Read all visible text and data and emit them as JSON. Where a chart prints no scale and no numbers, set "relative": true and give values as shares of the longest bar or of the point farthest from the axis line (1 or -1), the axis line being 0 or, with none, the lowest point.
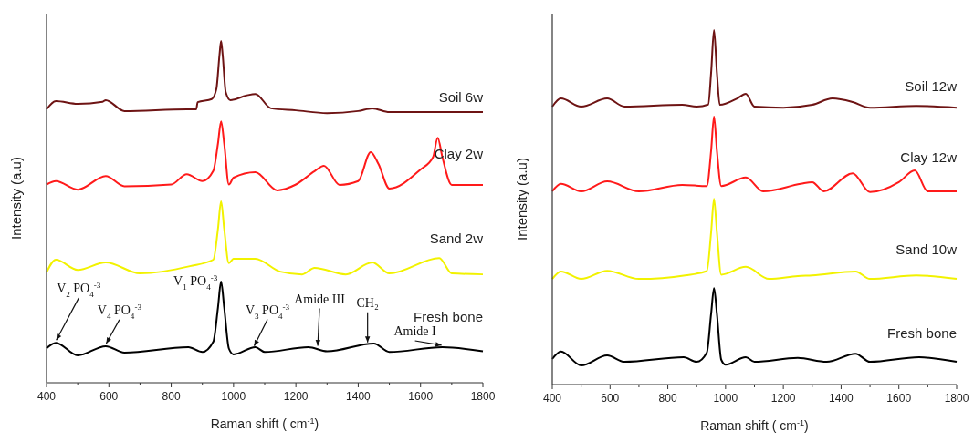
{
  "chart_data": [
    {
      "type": "line",
      "relative": true,
      "xlabel": "Raman shift ( cm$^{-1}$)",
      "ylabel": "Intensity (a.u)",
      "xlim": [
        400,
        1800
      ],
      "xticks": [
        400,
        {
          "value": 500,
          "label": null
        },
        600,
        {
          "value": 700,
          "label": null
        },
        800,
        {
          "value": 900,
          "label": null
        },
        1000,
        {
          "value": 1100,
          "label": null
        },
        1200,
        {
          "value": 1300,
          "label": null
        },
        1400,
        {
          "value": 1500,
          "label": null
        },
        1600,
        {
          "value": 1700,
          "label": null
        },
        1800
      ],
      "grid": false,
      "legend": false,
      "marker": "none",
      "line_style": "solid",
      "series": [
        {
          "name": "Soil 6w",
          "color": "#6e1414",
          "x": [
            400,
            430,
            500,
            580,
            590,
            650,
            850,
            880,
            885,
            930,
            945,
            955,
            960,
            965,
            975,
            990,
            1040,
            1070,
            1120,
            1200,
            1300,
            1400,
            1445,
            1500,
            1800
          ],
          "values": [
            0.8,
            0.824,
            0.816,
            0.822,
            0.827,
            0.795,
            0.8,
            0.8,
            0.821,
            0.83,
            0.86,
            0.96,
            1,
            0.96,
            0.85,
            0.827,
            0.84,
            0.845,
            0.803,
            0.797,
            0.789,
            0.795,
            0.803,
            0.792,
            0.792
          ]
        },
        {
          "name": "Clay 2w",
          "color": "#ff1a1a",
          "x": [
            400,
            430,
            500,
            590,
            650,
            800,
            850,
            900,
            935,
            950,
            960,
            970,
            985,
            1000,
            1070,
            1140,
            1200,
            1260,
            1290,
            1340,
            1400,
            1440,
            1465,
            1500,
            1600,
            1640,
            1655,
            1670,
            1700,
            1800
          ],
          "values": [
            0.58,
            0.59,
            0.565,
            0.605,
            0.575,
            0.58,
            0.61,
            0.59,
            0.62,
            0.7,
            0.765,
            0.7,
            0.58,
            0.6,
            0.616,
            0.563,
            0.58,
            0.619,
            0.635,
            0.579,
            0.59,
            0.675,
            0.64,
            0.568,
            0.624,
            0.66,
            0.717,
            0.66,
            0.579,
            0.579
          ]
        },
        {
          "name": "Sand 2w",
          "color": "#f2f200",
          "x": [
            400,
            430,
            500,
            590,
            700,
            860,
            935,
            950,
            960,
            970,
            985,
            1000,
            1070,
            1150,
            1220,
            1260,
            1360,
            1445,
            1500,
            1660,
            1700,
            1800
          ],
          "values": [
            0.323,
            0.36,
            0.33,
            0.352,
            0.32,
            0.341,
            0.36,
            0.45,
            0.531,
            0.45,
            0.35,
            0.363,
            0.363,
            0.325,
            0.317,
            0.336,
            0.317,
            0.352,
            0.32,
            0.365,
            0.32,
            0.317
          ]
        },
        {
          "name": "Fresh bone",
          "color": "#000000",
          "x": [
            400,
            430,
            500,
            590,
            650,
            855,
            900,
            935,
            950,
            960,
            970,
            985,
            1000,
            1070,
            1100,
            1240,
            1300,
            1450,
            1500,
            1670,
            1800
          ],
          "values": [
            0.101,
            0.117,
            0.08,
            0.107,
            0.088,
            0.104,
            0.09,
            0.12,
            0.22,
            0.296,
            0.22,
            0.1,
            0.083,
            0.104,
            0.09,
            0.104,
            0.092,
            0.115,
            0.09,
            0.104,
            0.092
          ]
        }
      ],
      "annotations": [
        {
          "text": "V$_{2}$ PO$_{4}$$^{-3}$",
          "x": 430,
          "y": 0.117
        },
        {
          "text": "V$_{4}$ PO$_{4}$$^{-3}$",
          "x": 590,
          "y": 0.107
        },
        {
          "text": "V$_{1}$ PO$_{4}$$^{-3}$",
          "x": 960,
          "y": 0.296
        },
        {
          "text": "V$_{3}$ PO$_{4}$$^{-3}$",
          "x": 1065,
          "y": 0.1
        },
        {
          "text": "Amide III",
          "x": 1270,
          "y": 0.1
        },
        {
          "text": "CH₂",
          "x": 1430,
          "y": 0.11
        },
        {
          "text": "Amide I",
          "x": 1670,
          "y": 0.104
        }
      ]
    },
    {
      "type": "line",
      "relative": true,
      "xlabel": "Raman shift ( cm$^{-1}$)",
      "ylabel": "Intensity (a.u)",
      "xlim": [
        400,
        1800
      ],
      "xticks": [
        400,
        {
          "value": 500,
          "label": null
        },
        600,
        {
          "value": 700,
          "label": null
        },
        800,
        {
          "value": 900,
          "label": null
        },
        1000,
        {
          "value": 1100,
          "label": null
        },
        1200,
        {
          "value": 1300,
          "label": null
        },
        1400,
        {
          "value": 1500,
          "label": null
        },
        1600,
        {
          "value": 1700,
          "label": null
        },
        1800
      ],
      "grid": false,
      "legend": false,
      "marker": "none",
      "line_style": "solid",
      "series": [
        {
          "name": "Soil 12w",
          "color": "#6e1414",
          "x": [
            400,
            430,
            500,
            590,
            650,
            850,
            900,
            940,
            950,
            960,
            970,
            980,
            1040,
            1070,
            1100,
            1200,
            1300,
            1370,
            1440,
            1500,
            1660,
            1800
          ],
          "values": [
            0.784,
            0.807,
            0.784,
            0.807,
            0.784,
            0.789,
            0.784,
            0.79,
            0.88,
            1,
            0.88,
            0.789,
            0.807,
            0.82,
            0.784,
            0.781,
            0.789,
            0.807,
            0.797,
            0.781,
            0.786,
            0.781
          ]
        },
        {
          "name": "Clay 12w",
          "color": "#ff1a1a",
          "x": [
            400,
            430,
            500,
            590,
            700,
            850,
            935,
            950,
            960,
            970,
            985,
            1070,
            1130,
            1260,
            1300,
            1340,
            1440,
            1500,
            1600,
            1655,
            1700,
            1800
          ],
          "values": [
            0.545,
            0.566,
            0.545,
            0.573,
            0.545,
            0.563,
            0.56,
            0.66,
            0.756,
            0.66,
            0.56,
            0.584,
            0.545,
            0.566,
            0.571,
            0.545,
            0.596,
            0.543,
            0.571,
            0.604,
            0.545,
            0.545
          ]
        },
        {
          "name": "Sand 10w",
          "color": "#f2f200",
          "x": [
            400,
            430,
            500,
            590,
            700,
            860,
            935,
            950,
            960,
            970,
            985,
            1070,
            1150,
            1250,
            1300,
            1450,
            1500,
            1660,
            1800
          ],
          "values": [
            0.298,
            0.319,
            0.298,
            0.321,
            0.298,
            0.308,
            0.32,
            0.43,
            0.524,
            0.43,
            0.31,
            0.332,
            0.298,
            0.306,
            0.308,
            0.319,
            0.298,
            0.308,
            0.298
          ]
        },
        {
          "name": "Fresh bone",
          "color": "#000000",
          "x": [
            400,
            430,
            500,
            590,
            650,
            855,
            900,
            935,
            950,
            960,
            970,
            985,
            1000,
            1070,
            1100,
            1250,
            1350,
            1450,
            1500,
            1670,
            1800
          ],
          "values": [
            0.072,
            0.093,
            0.054,
            0.082,
            0.064,
            0.077,
            0.064,
            0.09,
            0.2,
            0.272,
            0.2,
            0.07,
            0.056,
            0.077,
            0.064,
            0.075,
            0.064,
            0.087,
            0.064,
            0.077,
            0.064
          ]
        }
      ]
    }
  ]
}
